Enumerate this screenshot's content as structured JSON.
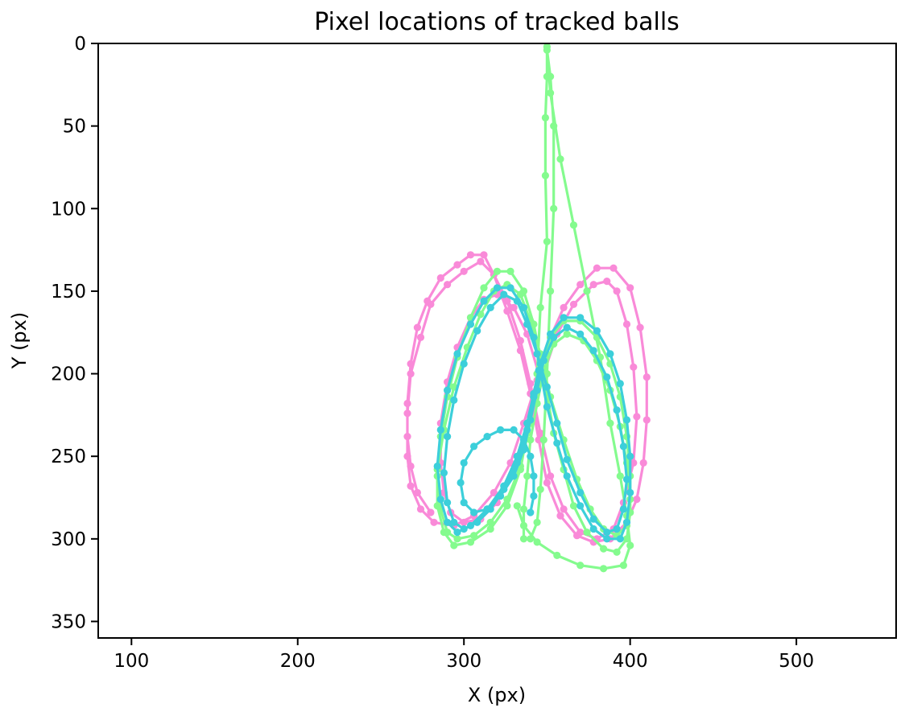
{
  "chart_data": {
    "type": "line",
    "title": "Pixel locations of tracked balls",
    "xlabel": "X (px)",
    "ylabel": "Y (px)",
    "xlim": [
      80,
      560
    ],
    "ylim": [
      360,
      0
    ],
    "y_inverted": true,
    "xticks": [
      100,
      200,
      300,
      400,
      500
    ],
    "yticks": [
      0,
      50,
      100,
      150,
      200,
      250,
      300,
      350
    ],
    "grid": false,
    "markers": true,
    "series": [
      {
        "color": "#f98ad8",
        "points": [
          [
            345,
            200
          ],
          [
            338,
            176
          ],
          [
            330,
            160
          ],
          [
            320,
            152
          ],
          [
            312,
            155
          ],
          [
            304,
            166
          ],
          [
            296,
            184
          ],
          [
            290,
            205
          ],
          [
            286,
            230
          ],
          [
            286,
            254
          ],
          [
            288,
            272
          ],
          [
            292,
            284
          ],
          [
            300,
            290
          ],
          [
            310,
            288
          ],
          [
            320,
            278
          ],
          [
            330,
            258
          ],
          [
            340,
            226
          ],
          [
            348,
            200
          ],
          [
            356,
            176
          ],
          [
            366,
            158
          ],
          [
            378,
            146
          ],
          [
            386,
            144
          ],
          [
            392,
            150
          ],
          [
            398,
            170
          ],
          [
            402,
            196
          ],
          [
            404,
            226
          ],
          [
            402,
            254
          ],
          [
            396,
            278
          ],
          [
            390,
            294
          ],
          [
            380,
            300
          ],
          [
            370,
            296
          ],
          [
            360,
            282
          ],
          [
            352,
            262
          ],
          [
            346,
            236
          ],
          [
            340,
            206
          ],
          [
            334,
            180
          ],
          [
            326,
            156
          ],
          [
            318,
            140
          ],
          [
            310,
            132
          ],
          [
            300,
            138
          ],
          [
            290,
            146
          ],
          [
            280,
            158
          ],
          [
            274,
            178
          ],
          [
            268,
            200
          ],
          [
            266,
            224
          ],
          [
            266,
            250
          ],
          [
            268,
            268
          ],
          [
            274,
            282
          ],
          [
            282,
            290
          ],
          [
            294,
            292
          ],
          [
            306,
            286
          ],
          [
            318,
            272
          ],
          [
            328,
            254
          ],
          [
            336,
            230
          ],
          [
            344,
            204
          ],
          [
            352,
            178
          ],
          [
            360,
            160
          ],
          [
            370,
            146
          ],
          [
            380,
            136
          ],
          [
            390,
            136
          ],
          [
            400,
            148
          ],
          [
            406,
            172
          ],
          [
            410,
            202
          ],
          [
            410,
            228
          ],
          [
            408,
            254
          ],
          [
            404,
            276
          ],
          [
            398,
            290
          ],
          [
            388,
            300
          ],
          [
            378,
            302
          ],
          [
            368,
            298
          ],
          [
            358,
            286
          ],
          [
            350,
            266
          ],
          [
            345,
            240
          ],
          [
            340,
            212
          ],
          [
            334,
            186
          ],
          [
            326,
            162
          ],
          [
            318,
            140
          ],
          [
            312,
            128
          ],
          [
            304,
            128
          ],
          [
            296,
            134
          ],
          [
            286,
            142
          ],
          [
            278,
            156
          ],
          [
            272,
            172
          ],
          [
            268,
            194
          ],
          [
            266,
            218
          ],
          [
            266,
            238
          ],
          [
            268,
            256
          ],
          [
            272,
            272
          ],
          [
            280,
            284
          ]
        ]
      },
      {
        "color": "#84fb8e",
        "points": [
          [
            350,
            2
          ],
          [
            350,
            20
          ],
          [
            349,
            45
          ],
          [
            349,
            80
          ],
          [
            350,
            120
          ],
          [
            346,
            160
          ],
          [
            344,
            200
          ],
          [
            340,
            230
          ],
          [
            334,
            256
          ],
          [
            326,
            276
          ],
          [
            316,
            290
          ],
          [
            306,
            298
          ],
          [
            296,
            300
          ],
          [
            290,
            296
          ],
          [
            286,
            282
          ],
          [
            284,
            262
          ],
          [
            286,
            238
          ],
          [
            290,
            214
          ],
          [
            296,
            190
          ],
          [
            304,
            166
          ],
          [
            312,
            148
          ],
          [
            320,
            138
          ],
          [
            328,
            138
          ],
          [
            336,
            150
          ],
          [
            342,
            170
          ],
          [
            346,
            190
          ],
          [
            350,
            212
          ],
          [
            354,
            236
          ],
          [
            360,
            258
          ],
          [
            366,
            280
          ],
          [
            374,
            296
          ],
          [
            384,
            306
          ],
          [
            392,
            308
          ],
          [
            398,
            300
          ],
          [
            400,
            284
          ],
          [
            400,
            262
          ],
          [
            398,
            238
          ],
          [
            394,
            214
          ],
          [
            388,
            194
          ],
          [
            380,
            178
          ],
          [
            370,
            168
          ],
          [
            360,
            168
          ],
          [
            352,
            178
          ],
          [
            346,
            194
          ],
          [
            342,
            214
          ],
          [
            338,
            236
          ],
          [
            334,
            258
          ],
          [
            326,
            280
          ],
          [
            316,
            294
          ],
          [
            304,
            302
          ],
          [
            294,
            304
          ],
          [
            288,
            296
          ],
          [
            284,
            280
          ],
          [
            284,
            258
          ],
          [
            288,
            234
          ],
          [
            294,
            208
          ],
          [
            302,
            184
          ],
          [
            310,
            164
          ],
          [
            318,
            150
          ],
          [
            326,
            146
          ],
          [
            334,
            152
          ],
          [
            340,
            168
          ],
          [
            346,
            188
          ],
          [
            352,
            214
          ],
          [
            360,
            240
          ],
          [
            368,
            264
          ],
          [
            376,
            282
          ],
          [
            384,
            294
          ],
          [
            392,
            298
          ],
          [
            398,
            292
          ],
          [
            400,
            276
          ],
          [
            398,
            254
          ],
          [
            394,
            232
          ],
          [
            388,
            210
          ],
          [
            380,
            192
          ],
          [
            372,
            180
          ],
          [
            362,
            176
          ],
          [
            354,
            182
          ],
          [
            348,
            198
          ],
          [
            344,
            218
          ],
          [
            340,
            240
          ],
          [
            338,
            262
          ],
          [
            336,
            282
          ],
          [
            336,
            300
          ],
          [
            340,
            300
          ],
          [
            344,
            290
          ],
          [
            346,
            270
          ],
          [
            348,
            240
          ],
          [
            350,
            200
          ],
          [
            352,
            150
          ],
          [
            354,
            100
          ],
          [
            354,
            50
          ],
          [
            352,
            20
          ],
          [
            350,
            4
          ],
          [
            352,
            30
          ],
          [
            358,
            70
          ],
          [
            366,
            110
          ],
          [
            374,
            150
          ],
          [
            382,
            190
          ],
          [
            388,
            230
          ],
          [
            394,
            262
          ],
          [
            398,
            286
          ],
          [
            400,
            304
          ],
          [
            396,
            316
          ],
          [
            384,
            318
          ],
          [
            370,
            316
          ],
          [
            356,
            310
          ],
          [
            344,
            302
          ],
          [
            336,
            292
          ],
          [
            332,
            280
          ]
        ]
      },
      {
        "color": "#3ccfda",
        "points": [
          [
            345,
            198
          ],
          [
            342,
            212
          ],
          [
            338,
            230
          ],
          [
            332,
            250
          ],
          [
            324,
            268
          ],
          [
            314,
            282
          ],
          [
            304,
            292
          ],
          [
            296,
            296
          ],
          [
            290,
            290
          ],
          [
            286,
            276
          ],
          [
            284,
            256
          ],
          [
            286,
            234
          ],
          [
            290,
            210
          ],
          [
            296,
            188
          ],
          [
            304,
            170
          ],
          [
            312,
            156
          ],
          [
            320,
            148
          ],
          [
            328,
            148
          ],
          [
            336,
            160
          ],
          [
            342,
            178
          ],
          [
            346,
            198
          ],
          [
            350,
            220
          ],
          [
            356,
            242
          ],
          [
            362,
            262
          ],
          [
            370,
            280
          ],
          [
            378,
            294
          ],
          [
            386,
            300
          ],
          [
            394,
            300
          ],
          [
            398,
            290
          ],
          [
            400,
            272
          ],
          [
            400,
            250
          ],
          [
            398,
            228
          ],
          [
            394,
            206
          ],
          [
            388,
            188
          ],
          [
            380,
            174
          ],
          [
            370,
            166
          ],
          [
            360,
            166
          ],
          [
            352,
            176
          ],
          [
            346,
            194
          ],
          [
            342,
            214
          ],
          [
            338,
            234
          ],
          [
            332,
            254
          ],
          [
            324,
            270
          ],
          [
            316,
            282
          ],
          [
            308,
            290
          ],
          [
            300,
            294
          ],
          [
            294,
            290
          ],
          [
            290,
            278
          ],
          [
            288,
            260
          ],
          [
            290,
            238
          ],
          [
            294,
            216
          ],
          [
            300,
            194
          ],
          [
            308,
            174
          ],
          [
            316,
            160
          ],
          [
            324,
            152
          ],
          [
            332,
            156
          ],
          [
            338,
            170
          ],
          [
            344,
            188
          ],
          [
            350,
            208
          ],
          [
            356,
            230
          ],
          [
            362,
            252
          ],
          [
            370,
            272
          ],
          [
            378,
            288
          ],
          [
            386,
            296
          ],
          [
            392,
            294
          ],
          [
            396,
            282
          ],
          [
            398,
            264
          ],
          [
            396,
            244
          ],
          [
            392,
            222
          ],
          [
            386,
            202
          ],
          [
            378,
            186
          ],
          [
            370,
            176
          ],
          [
            362,
            172
          ],
          [
            354,
            178
          ],
          [
            348,
            192
          ],
          [
            344,
            210
          ],
          [
            340,
            228
          ],
          [
            336,
            246
          ],
          [
            330,
            262
          ],
          [
            322,
            274
          ],
          [
            314,
            282
          ],
          [
            306,
            284
          ],
          [
            300,
            278
          ],
          [
            298,
            266
          ],
          [
            300,
            254
          ],
          [
            306,
            244
          ],
          [
            314,
            238
          ],
          [
            322,
            234
          ],
          [
            330,
            234
          ],
          [
            336,
            240
          ],
          [
            340,
            250
          ],
          [
            342,
            262
          ],
          [
            342,
            274
          ],
          [
            340,
            284
          ]
        ]
      }
    ]
  }
}
